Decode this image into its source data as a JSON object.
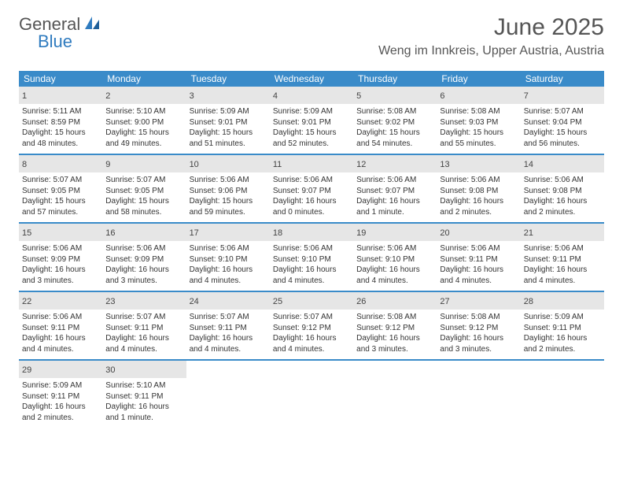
{
  "brand": {
    "general": "General",
    "blue": "Blue"
  },
  "title": "June 2025",
  "location": "Weng im Innkreis, Upper Austria, Austria",
  "colors": {
    "header_bg": "#3a8bc9",
    "row_divider": "#3a8bc9",
    "daynum_bg": "#e6e6e6",
    "text": "#333333",
    "brand_blue": "#2f7bbf"
  },
  "weekdays": [
    "Sunday",
    "Monday",
    "Tuesday",
    "Wednesday",
    "Thursday",
    "Friday",
    "Saturday"
  ],
  "weeks": [
    [
      {
        "n": "1",
        "sr": "Sunrise: 5:11 AM",
        "ss": "Sunset: 8:59 PM",
        "d1": "Daylight: 15 hours",
        "d2": "and 48 minutes."
      },
      {
        "n": "2",
        "sr": "Sunrise: 5:10 AM",
        "ss": "Sunset: 9:00 PM",
        "d1": "Daylight: 15 hours",
        "d2": "and 49 minutes."
      },
      {
        "n": "3",
        "sr": "Sunrise: 5:09 AM",
        "ss": "Sunset: 9:01 PM",
        "d1": "Daylight: 15 hours",
        "d2": "and 51 minutes."
      },
      {
        "n": "4",
        "sr": "Sunrise: 5:09 AM",
        "ss": "Sunset: 9:01 PM",
        "d1": "Daylight: 15 hours",
        "d2": "and 52 minutes."
      },
      {
        "n": "5",
        "sr": "Sunrise: 5:08 AM",
        "ss": "Sunset: 9:02 PM",
        "d1": "Daylight: 15 hours",
        "d2": "and 54 minutes."
      },
      {
        "n": "6",
        "sr": "Sunrise: 5:08 AM",
        "ss": "Sunset: 9:03 PM",
        "d1": "Daylight: 15 hours",
        "d2": "and 55 minutes."
      },
      {
        "n": "7",
        "sr": "Sunrise: 5:07 AM",
        "ss": "Sunset: 9:04 PM",
        "d1": "Daylight: 15 hours",
        "d2": "and 56 minutes."
      }
    ],
    [
      {
        "n": "8",
        "sr": "Sunrise: 5:07 AM",
        "ss": "Sunset: 9:05 PM",
        "d1": "Daylight: 15 hours",
        "d2": "and 57 minutes."
      },
      {
        "n": "9",
        "sr": "Sunrise: 5:07 AM",
        "ss": "Sunset: 9:05 PM",
        "d1": "Daylight: 15 hours",
        "d2": "and 58 minutes."
      },
      {
        "n": "10",
        "sr": "Sunrise: 5:06 AM",
        "ss": "Sunset: 9:06 PM",
        "d1": "Daylight: 15 hours",
        "d2": "and 59 minutes."
      },
      {
        "n": "11",
        "sr": "Sunrise: 5:06 AM",
        "ss": "Sunset: 9:07 PM",
        "d1": "Daylight: 16 hours",
        "d2": "and 0 minutes."
      },
      {
        "n": "12",
        "sr": "Sunrise: 5:06 AM",
        "ss": "Sunset: 9:07 PM",
        "d1": "Daylight: 16 hours",
        "d2": "and 1 minute."
      },
      {
        "n": "13",
        "sr": "Sunrise: 5:06 AM",
        "ss": "Sunset: 9:08 PM",
        "d1": "Daylight: 16 hours",
        "d2": "and 2 minutes."
      },
      {
        "n": "14",
        "sr": "Sunrise: 5:06 AM",
        "ss": "Sunset: 9:08 PM",
        "d1": "Daylight: 16 hours",
        "d2": "and 2 minutes."
      }
    ],
    [
      {
        "n": "15",
        "sr": "Sunrise: 5:06 AM",
        "ss": "Sunset: 9:09 PM",
        "d1": "Daylight: 16 hours",
        "d2": "and 3 minutes."
      },
      {
        "n": "16",
        "sr": "Sunrise: 5:06 AM",
        "ss": "Sunset: 9:09 PM",
        "d1": "Daylight: 16 hours",
        "d2": "and 3 minutes."
      },
      {
        "n": "17",
        "sr": "Sunrise: 5:06 AM",
        "ss": "Sunset: 9:10 PM",
        "d1": "Daylight: 16 hours",
        "d2": "and 4 minutes."
      },
      {
        "n": "18",
        "sr": "Sunrise: 5:06 AM",
        "ss": "Sunset: 9:10 PM",
        "d1": "Daylight: 16 hours",
        "d2": "and 4 minutes."
      },
      {
        "n": "19",
        "sr": "Sunrise: 5:06 AM",
        "ss": "Sunset: 9:10 PM",
        "d1": "Daylight: 16 hours",
        "d2": "and 4 minutes."
      },
      {
        "n": "20",
        "sr": "Sunrise: 5:06 AM",
        "ss": "Sunset: 9:11 PM",
        "d1": "Daylight: 16 hours",
        "d2": "and 4 minutes."
      },
      {
        "n": "21",
        "sr": "Sunrise: 5:06 AM",
        "ss": "Sunset: 9:11 PM",
        "d1": "Daylight: 16 hours",
        "d2": "and 4 minutes."
      }
    ],
    [
      {
        "n": "22",
        "sr": "Sunrise: 5:06 AM",
        "ss": "Sunset: 9:11 PM",
        "d1": "Daylight: 16 hours",
        "d2": "and 4 minutes."
      },
      {
        "n": "23",
        "sr": "Sunrise: 5:07 AM",
        "ss": "Sunset: 9:11 PM",
        "d1": "Daylight: 16 hours",
        "d2": "and 4 minutes."
      },
      {
        "n": "24",
        "sr": "Sunrise: 5:07 AM",
        "ss": "Sunset: 9:11 PM",
        "d1": "Daylight: 16 hours",
        "d2": "and 4 minutes."
      },
      {
        "n": "25",
        "sr": "Sunrise: 5:07 AM",
        "ss": "Sunset: 9:12 PM",
        "d1": "Daylight: 16 hours",
        "d2": "and 4 minutes."
      },
      {
        "n": "26",
        "sr": "Sunrise: 5:08 AM",
        "ss": "Sunset: 9:12 PM",
        "d1": "Daylight: 16 hours",
        "d2": "and 3 minutes."
      },
      {
        "n": "27",
        "sr": "Sunrise: 5:08 AM",
        "ss": "Sunset: 9:12 PM",
        "d1": "Daylight: 16 hours",
        "d2": "and 3 minutes."
      },
      {
        "n": "28",
        "sr": "Sunrise: 5:09 AM",
        "ss": "Sunset: 9:11 PM",
        "d1": "Daylight: 16 hours",
        "d2": "and 2 minutes."
      }
    ],
    [
      {
        "n": "29",
        "sr": "Sunrise: 5:09 AM",
        "ss": "Sunset: 9:11 PM",
        "d1": "Daylight: 16 hours",
        "d2": "and 2 minutes."
      },
      {
        "n": "30",
        "sr": "Sunrise: 5:10 AM",
        "ss": "Sunset: 9:11 PM",
        "d1": "Daylight: 16 hours",
        "d2": "and 1 minute."
      },
      null,
      null,
      null,
      null,
      null
    ]
  ]
}
